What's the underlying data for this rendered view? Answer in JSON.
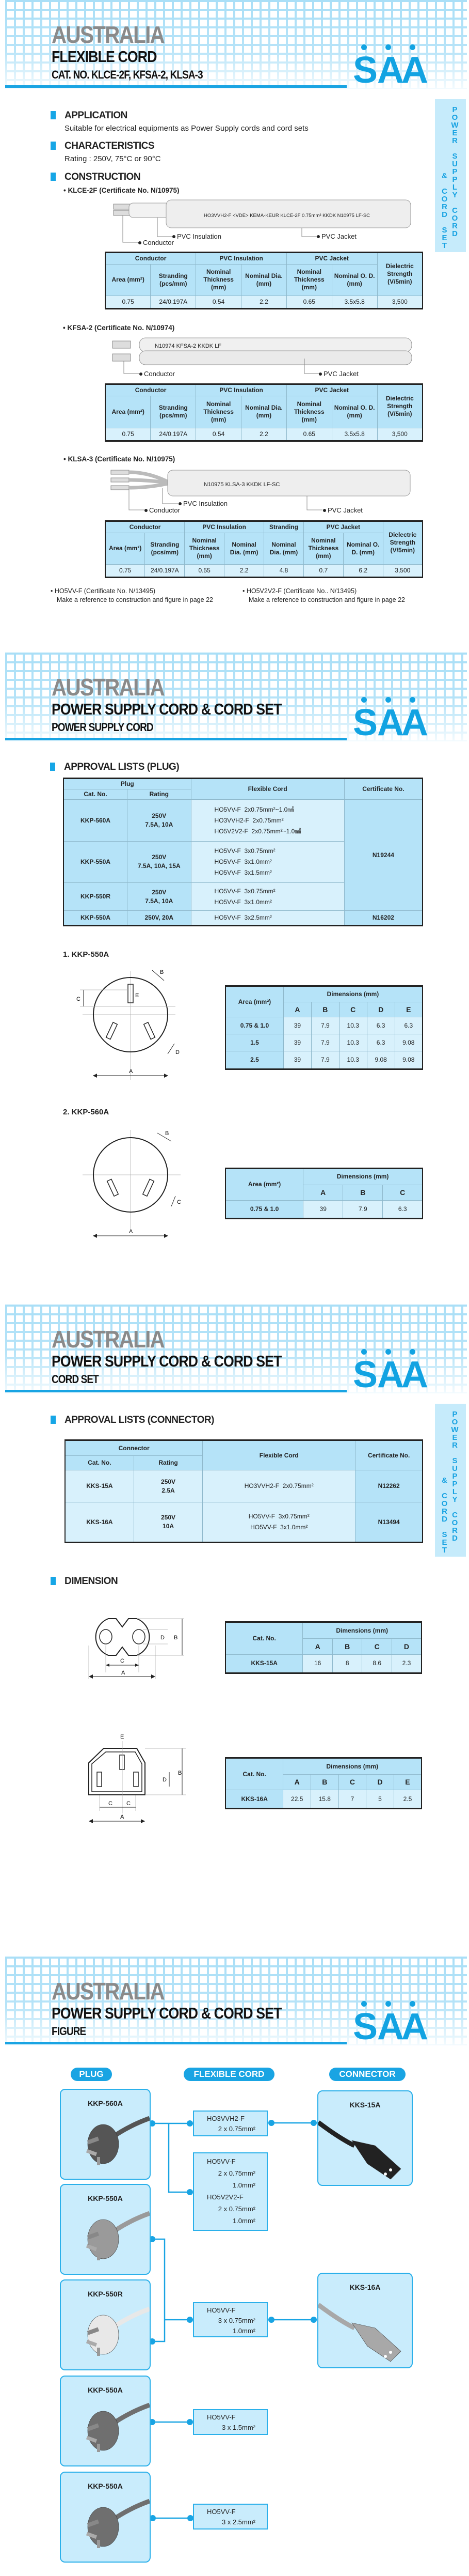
{
  "page1": {
    "header": {
      "brand": "AUSTRALIA",
      "title": "FLEXIBLE CORD",
      "subtitle": "CAT. NO. KLCE-2F, KFSA-2, KLSA-3",
      "logo": "SAA"
    },
    "side_tab": {
      "right": "POWER SUPPLY CORD",
      "left": "& CORD SET"
    },
    "application": {
      "heading": "APPLICATION",
      "text": "Suitable for electrical equipments as Power Supply cords and cord sets"
    },
    "characteristics": {
      "heading": "CHARACTERISTICS",
      "text": "Rating : 250V,  75°C or 90°C"
    },
    "construction": {
      "heading": "CONSTRUCTION"
    },
    "cables": [
      {
        "title": "• KLCE-2F (Certificate No. N/10975)",
        "print": "HO3VVH2-F  <VDE>  KEMA-KEUR  KLCE-2F  0.75mm²  KKDK  N10975  LF-SC",
        "labels": {
          "conductor": "Conductor",
          "insulation": "PVC Insulation",
          "jacket": "PVC Jacket"
        },
        "table": {
          "groups": [
            {
              "label": "Conductor",
              "span": 2
            },
            {
              "label": "PVC Insulation",
              "span": 2
            },
            {
              "label": "PVC Jacket",
              "span": 2
            }
          ],
          "last": "Dielectric Strength (V/5min)",
          "columns": [
            "Area (mm²)",
            "Stranding (pcs/mm)",
            "Nominal Thickness (mm)",
            "Nominal Dia. (mm)",
            "Nominal Thickness (mm)",
            "Nominal O. D. (mm)"
          ],
          "values": [
            "0.75",
            "24/0.197A",
            "0.54",
            "2.2",
            "0.65",
            "3.5x5.8",
            "3,500"
          ]
        }
      },
      {
        "title": "• KFSA-2 (Certificate No. N/10974)",
        "print": "N10974  KFSA-2  KKDK  LF",
        "labels": {
          "conductor": "Conductor",
          "jacket": "PVC Jacket"
        },
        "table": {
          "groups": [
            {
              "label": "Conductor",
              "span": 2
            },
            {
              "label": "PVC Insulation",
              "span": 2
            },
            {
              "label": "PVC Jacket",
              "span": 2
            }
          ],
          "last": "Dielectric Strength (V/5min)",
          "columns": [
            "Area (mm²)",
            "Stranding (pcs/mm)",
            "Nominal Thickness (mm)",
            "Nominal Dia. (mm)",
            "Nominal Thickness (mm)",
            "Nominal O. D. (mm)"
          ],
          "values": [
            "0.75",
            "24/0.197A",
            "0.54",
            "2.2",
            "0.65",
            "3.5x5.8",
            "3,500"
          ]
        }
      },
      {
        "title": "• KLSA-3 (Certificate No. N/10975)",
        "print": "N10975  KLSA-3  KKDK  LF-SC",
        "labels": {
          "conductor": "Conductor",
          "insulation": "PVC Insulation",
          "jacket": "PVC Jacket"
        },
        "table": {
          "groups": [
            {
              "label": "Conductor",
              "span": 2
            },
            {
              "label": "PVC Insulation",
              "span": 2
            },
            {
              "label": "Stranding",
              "span": 1
            },
            {
              "label": "PVC Jacket",
              "span": 2
            }
          ],
          "last": "Dielectric Strength (V/5min)",
          "columns": [
            "Area (mm²)",
            "Stranding (pcs/mm)",
            "Nominal Thickness (mm)",
            "Nominal Dia. (mm)",
            "Nominal Dia. (mm)",
            "Nominal Thickness (mm)",
            "Nominal O. D. (mm)"
          ],
          "values": [
            "0.75",
            "24/0.197A",
            "0.55",
            "2.2",
            "4.8",
            "0.7",
            "6.2",
            "3,500"
          ]
        }
      }
    ],
    "notes": [
      {
        "title": "• HO5VV-F (Certificate No. N/13495)",
        "text": "Make a reference to construction and figure in page 22"
      },
      {
        "title": "• HO5V2V2-F (Certificate No.. N/13495)",
        "text": "Make a reference to construction and figure in page 22"
      }
    ]
  },
  "page2": {
    "header": {
      "brand": "AUSTRALIA",
      "title": "POWER SUPPLY CORD & CORD SET",
      "subtitle": "POWER SUPPLY CORD",
      "logo": "SAA"
    },
    "approval": {
      "heading": "APPROVAL LISTS (PLUG)",
      "columns": {
        "group": "Plug",
        "cat_no": "Cat. No.",
        "rating": "Rating",
        "cord": "Flexible Cord",
        "cert": "Certificate No."
      },
      "rows": [
        {
          "cat": "KKP-560A",
          "rating": [
            "250V",
            "7.5A, 10A"
          ],
          "cords": [
            "HO5VV-F  2x0.75mm²~1.0㎟",
            "HO3VVH2-F  2x0.75mm²",
            "HO5V2V2-F  2x0.75mm²~1.0㎟"
          ]
        },
        {
          "cat": "KKP-550A",
          "rating": [
            "250V",
            "7.5A, 10A, 15A"
          ],
          "cords": [
            "HO5VV-F  3x0.75mm²",
            "HO5VV-F  3x1.0mm²",
            "HO5VV-F  3x1.5mm²"
          ]
        },
        {
          "cat": "KKP-550R",
          "rating": [
            "250V",
            "7.5A, 10A"
          ],
          "cords": [
            "HO5VV-F  3x0.75mm²",
            "HO5VV-F  3x1.0mm²"
          ]
        },
        {
          "cat": "KKP-550A",
          "rating": [
            "250V, 20A"
          ],
          "cords": [
            "HO5VV-F  3x2.5mm²"
          ]
        }
      ],
      "certificates": [
        {
          "no": "N19244",
          "rows": 3
        },
        {
          "no": "N16202",
          "rows": 1
        }
      ]
    },
    "diagrams": [
      {
        "title": "1. KKP-550A",
        "labels": [
          "A",
          "B",
          "C",
          "D",
          "E"
        ],
        "table": {
          "corner": "Area (mm²)",
          "group": "Dimensions (mm)",
          "columns": [
            "A",
            "B",
            "C",
            "D",
            "E"
          ],
          "rows": [
            [
              "0.75 & 1.0",
              "39",
              "7.9",
              "10.3",
              "6.3",
              "6.3"
            ],
            [
              "1.5",
              "39",
              "7.9",
              "10.3",
              "6.3",
              "9.08"
            ],
            [
              "2.5",
              "39",
              "7.9",
              "10.3",
              "9.08",
              "9.08"
            ]
          ]
        }
      },
      {
        "title": "2. KKP-560A",
        "labels": [
          "A",
          "B",
          "C"
        ],
        "table": {
          "corner": "Area (mm²)",
          "group": "Dimensions (mm)",
          "columns": [
            "A",
            "B",
            "C"
          ],
          "rows": [
            [
              "0.75 & 1.0",
              "39",
              "7.9",
              "6.3"
            ]
          ]
        }
      }
    ]
  },
  "page3": {
    "header": {
      "brand": "AUSTRALIA",
      "title": "POWER SUPPLY CORD & CORD SET",
      "subtitle": "CORD SET",
      "logo": "SAA"
    },
    "side_tab": {
      "right": "POWER SUPPLY CORD",
      "left": "& CORD SET"
    },
    "approval": {
      "heading": "APPROVAL LISTS (CONNECTOR)",
      "columns": {
        "group": "Connector",
        "cat_no": "Cat. No.",
        "rating": "Rating",
        "cord": "Flexible Cord",
        "cert": "Certificate No."
      },
      "rows": [
        {
          "cat": "KKS-15A",
          "rating": [
            "250V",
            "2.5A"
          ],
          "cords": [
            "HO3VVH2-F  2x0.75mm²"
          ],
          "cert": "N12262"
        },
        {
          "cat": "KKS-16A",
          "rating": [
            "250V",
            "10A"
          ],
          "cords": [
            "HO5VV-F  3x0.75mm²",
            "HO5VV-F  3x1.0mm²"
          ],
          "cert": "N13494"
        }
      ]
    },
    "dimension": {
      "heading": "DIMENSION",
      "diagrams": [
        {
          "labels": [
            "A",
            "B",
            "C",
            "D"
          ],
          "table": {
            "corner": "Cat. No.",
            "group": "Dimensions (mm)",
            "columns": [
              "A",
              "B",
              "C",
              "D"
            ],
            "rows": [
              [
                "KKS-15A",
                "16",
                "8",
                "8.6",
                "2.3"
              ]
            ]
          }
        },
        {
          "labels": [
            "A",
            "B",
            "C",
            "C",
            "D",
            "E"
          ],
          "table": {
            "corner": "Cat. No.",
            "group": "Dimensions (mm)",
            "columns": [
              "A",
              "B",
              "C",
              "D",
              "E"
            ],
            "rows": [
              [
                "KKS-16A",
                "22.5",
                "15.8",
                "7",
                "5",
                "2.5"
              ]
            ]
          }
        }
      ]
    }
  },
  "page4": {
    "header": {
      "brand": "AUSTRALIA",
      "title": "POWER SUPPLY CORD & CORD SET",
      "subtitle": "FIGURE",
      "logo": "SAA"
    },
    "columns": {
      "plug": "PLUG",
      "cord": "FLEXIBLE CORD",
      "connector": "CONNECTOR"
    },
    "plugs": [
      {
        "name": "KKP-560A",
        "color": "#555"
      },
      {
        "name": "KKP-550A",
        "color": "#9a9a9a"
      },
      {
        "name": "KKP-550R",
        "color": "#e8e8e8"
      },
      {
        "name": "KKP-550A",
        "color": "#6f6f6f"
      },
      {
        "name": "KKP-550A",
        "color": "#6f6f6f"
      }
    ],
    "cords": [
      {
        "lines": [
          "HO3VVH2-F",
          "2 x 0.75mm²"
        ]
      },
      {
        "lines": [
          "HO5VV-F",
          "2 x 0.75mm²",
          "1.0mm²",
          "HO5V2V2-F",
          "2 x 0.75mm²",
          "1.0mm²"
        ]
      },
      {
        "lines": [
          "HO5VV-F",
          "3 x 0.75mm²",
          "1.0mm²"
        ]
      },
      {
        "lines": [
          "HO5VV-F",
          "3 x 1.5mm²"
        ]
      },
      {
        "lines": [
          "HO5VV-F",
          "3 x 2.5mm²"
        ]
      }
    ],
    "connectors": [
      {
        "name": "KKS-15A",
        "color": "#222"
      },
      {
        "name": "KKS-16A",
        "color": "#a8a8a8"
      }
    ]
  },
  "colors": {
    "accent": "#19a4e3",
    "table_header": "#b5e3f8",
    "table_cell": "#d8f1fc",
    "tab": "#c6ebfb"
  }
}
